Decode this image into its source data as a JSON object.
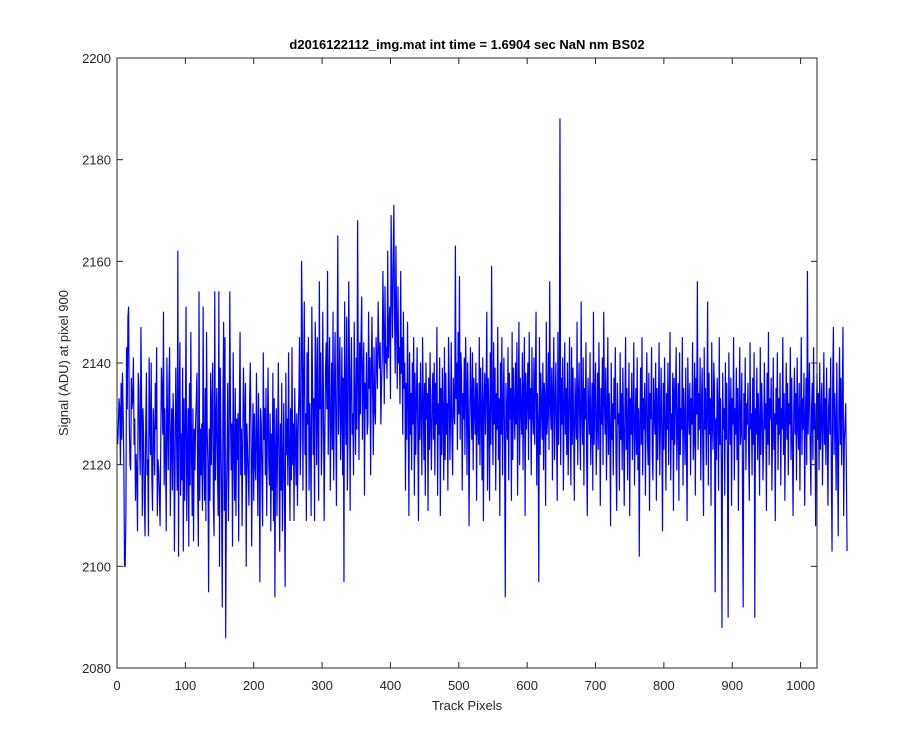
{
  "chart_data": {
    "type": "line",
    "title": "d2016122112_img.mat int time = 1.6904 sec  NaN nm BS02",
    "xlabel": "Track Pixels",
    "ylabel": "Signal (ADU) at pixel 900",
    "xlim": [
      0,
      1024
    ],
    "ylim": [
      2080,
      2200
    ],
    "xticks": [
      0,
      100,
      200,
      300,
      400,
      500,
      600,
      700,
      800,
      900,
      1000
    ],
    "yticks": [
      2080,
      2100,
      2120,
      2140,
      2160,
      2180,
      2200
    ],
    "grid": false,
    "legend": "none",
    "color": "#0000ff",
    "series": [
      {
        "x_start": 1,
        "x_step": 1,
        "values": [
          2124,
          2128,
          2133,
          2131,
          2120,
          2136,
          2125,
          2138,
          2130,
          2121,
          2100,
          2100,
          2110,
          2143,
          2131,
          2149,
          2151,
          2128,
          2120,
          2119,
          2137,
          2131,
          2133,
          2141,
          2124,
          2129,
          2113,
          2122,
          2118,
          2107,
          2138,
          2135,
          2124,
          2118,
          2147,
          2133,
          2110,
          2131,
          2125,
          2113,
          2106,
          2127,
          2138,
          2118,
          2121,
          2106,
          2141,
          2129,
          2122,
          2140,
          2117,
          2111,
          2131,
          2126,
          2118,
          2136,
          2127,
          2143,
          2110,
          2121,
          2119,
          2114,
          2108,
          2124,
          2139,
          2134,
          2126,
          2150,
          2116,
          2131,
          2122,
          2107,
          2141,
          2128,
          2119,
          2136,
          2143,
          2110,
          2124,
          2131,
          2115,
          2134,
          2128,
          2103,
          2121,
          2139,
          2127,
          2115,
          2162,
          2102,
          2131,
          2144,
          2114,
          2126,
          2117,
          2139,
          2103,
          2133,
          2113,
          2128,
          2151,
          2109,
          2122,
          2131,
          2104,
          2136,
          2116,
          2146,
          2122,
          2110,
          2131,
          2105,
          2127,
          2119,
          2128,
          2133,
          2138,
          2115,
          2104,
          2154,
          2113,
          2127,
          2118,
          2128,
          2111,
          2151,
          2121,
          2113,
          2135,
          2109,
          2146,
          2126,
          2120,
          2095,
          2127,
          2113,
          2138,
          2120,
          2132,
          2140,
          2112,
          2106,
          2154,
          2117,
          2128,
          2135,
          2118,
          2110,
          2154,
          2100,
          2139,
          2126,
          2113,
          2092,
          2133,
          2148,
          2111,
          2145,
          2086,
          2113,
          2122,
          2136,
          2109,
          2124,
          2154,
          2130,
          2119,
          2128,
          2104,
          2142,
          2123,
          2113,
          2135,
          2110,
          2129,
          2121,
          2130,
          2105,
          2131,
          2146,
          2118,
          2127,
          2108,
          2124,
          2139,
          2131,
          2118,
          2136,
          2100,
          2128,
          2123,
          2118,
          2112,
          2133,
          2140,
          2127,
          2104,
          2122,
          2132,
          2113,
          2130,
          2120,
          2117,
          2138,
          2125,
          2110,
          2134,
          2122,
          2097,
          2131,
          2128,
          2117,
          2108,
          2142,
          2125,
          2131,
          2118,
          2135,
          2110,
          2126,
          2139,
          2121,
          2116,
          2130,
          2107,
          2126,
          2115,
          2138,
          2109,
          2133,
          2094,
          2123,
          2131,
          2110,
          2125,
          2140,
          2120,
          2103,
          2128,
          2115,
          2136,
          2107,
          2119,
          2132,
          2113,
          2096,
          2138,
          2122,
          2129,
          2116,
          2142,
          2123,
          2109,
          2131,
          2117,
          2143,
          2120,
          2128,
          2109,
          2135,
          2124,
          2116,
          2130,
          2112,
          2127,
          2133,
          2145,
          2118,
          2125,
          2160,
          2148,
          2115,
          2138,
          2152,
          2122,
          2130,
          2109,
          2142,
          2128,
          2145,
          2115,
          2132,
          2124,
          2110,
          2151,
          2136,
          2122,
          2133,
          2109,
          2148,
          2138,
          2120,
          2145,
          2127,
          2113,
          2156,
          2131,
          2142,
          2118,
          2126,
          2150,
          2133,
          2109,
          2125,
          2138,
          2144,
          2131,
          2158,
          2122,
          2136,
          2145,
          2115,
          2128,
          2140,
          2123,
          2150,
          2117,
          2134,
          2146,
          2129,
          2112,
          2140,
          2165,
          2126,
          2134,
          2145,
          2121,
          2130,
          2143,
          2118,
          2137,
          2097,
          2152,
          2133,
          2124,
          2149,
          2115,
          2128,
          2156,
          2140,
          2111,
          2137,
          2145,
          2126,
          2130,
          2118,
          2148,
          2134,
          2122,
          2141,
          2127,
          2168,
          2136,
          2121,
          2144,
          2130,
          2145,
          2153,
          2125,
          2138,
          2144,
          2114,
          2136,
          2131,
          2142,
          2126,
          2128,
          2150,
          2135,
          2141,
          2118,
          2139,
          2149,
          2134,
          2122,
          2143,
          2131,
          2128,
          2145,
          2140,
          2135,
          2152,
          2143,
          2139,
          2144,
          2128,
          2136,
          2141,
          2158,
          2146,
          2132,
          2155,
          2140,
          2143,
          2137,
          2162,
          2141,
          2147,
          2151,
          2133,
          2169,
          2155,
          2145,
          2160,
          2171,
          2150,
          2138,
          2163,
          2148,
          2135,
          2155,
          2140,
          2143,
          2132,
          2158,
          2138,
          2145,
          2126,
          2150,
          2135,
          2140,
          2115,
          2136,
          2125,
          2148,
          2133,
          2110,
          2142,
          2126,
          2134,
          2119,
          2140,
          2128,
          2145,
          2114,
          2138,
          2122,
          2132,
          2143,
          2127,
          2109,
          2136,
          2125,
          2140,
          2130,
          2118,
          2145,
          2133,
          2121,
          2136,
          2114,
          2140,
          2129,
          2134,
          2111,
          2137,
          2123,
          2142,
          2127,
          2119,
          2133,
          2138,
          2125,
          2140,
          2118,
          2136,
          2128,
          2147,
          2114,
          2132,
          2126,
          2141,
          2110,
          2135,
          2122,
          2139,
          2129,
          2117,
          2143,
          2121,
          2138,
          2126,
          2132,
          2115,
          2145,
          2136,
          2121,
          2130,
          2144,
          2125,
          2118,
          2137,
          2131,
          2128,
          2163,
          2133,
          2140,
          2123,
          2146,
          2130,
          2157,
          2125,
          2142,
          2138,
          2115,
          2134,
          2129,
          2141,
          2122,
          2145,
          2136,
          2118,
          2140,
          2130,
          2108,
          2128,
          2143,
          2133,
          2125,
          2142,
          2119,
          2137,
          2131,
          2126,
          2140,
          2113,
          2136,
          2128,
          2124,
          2145,
          2120,
          2139,
          2131,
          2117,
          2141,
          2109,
          2132,
          2138,
          2126,
          2135,
          2150,
          2115,
          2137,
          2130,
          2113,
          2142,
          2124,
          2159,
          2131,
          2120,
          2144,
          2128,
          2139,
          2115,
          2134,
          2127,
          2147,
          2121,
          2133,
          2110,
          2140,
          2126,
          2145,
          2118,
          2132,
          2141,
          2123,
          2094,
          2136,
          2130,
          2125,
          2143,
          2117,
          2138,
          2129,
          2135,
          2113,
          2146,
          2121,
          2139,
          2131,
          2125,
          2140,
          2128,
          2144,
          2114,
          2133,
          2148,
          2120,
          2137,
          2131,
          2126,
          2142,
          2119,
          2135,
          2145,
          2110,
          2138,
          2127,
          2133,
          2140,
          2121,
          2146,
          2129,
          2135,
          2118,
          2143,
          2130,
          2126,
          2141,
          2124,
          2137,
          2150,
          2116,
          2134,
          2128,
          2097,
          2145,
          2122,
          2138,
          2131,
          2125,
          2140,
          2119,
          2136,
          2133,
          2112,
          2148,
          2126,
          2130,
          2142,
          2123,
          2156,
          2132,
          2127,
          2139,
          2117,
          2135,
          2145,
          2121,
          2131,
          2140,
          2127,
          2113,
          2146,
          2124,
          2132,
          2188,
          2120,
          2137,
          2128,
          2141,
          2115,
          2131,
          2144,
          2126,
          2135,
          2122,
          2140,
          2118,
          2129,
          2145,
          2130,
          2116,
          2143,
          2124,
          2139,
          2128,
          2113,
          2137,
          2131,
          2125,
          2148,
          2120,
          2133,
          2140,
          2127,
          2119,
          2152,
          2130,
          2124,
          2141,
          2116,
          2135,
          2129,
          2144,
          2122,
          2110,
          2137,
          2131,
          2126,
          2142,
          2120,
          2128,
          2136,
          2115,
          2150,
          2124,
          2133,
          2140,
          2118,
          2127,
          2138,
          2123,
          2144,
          2131,
          2112,
          2135,
          2128,
          2141,
          2120,
          2150,
          2133,
          2126,
          2139,
          2117,
          2130,
          2145,
          2122,
          2134,
          2127,
          2108,
          2140,
          2125,
          2132,
          2118,
          2137,
          2129,
          2143,
          2121,
          2111,
          2136,
          2128,
          2130,
          2115,
          2142,
          2125,
          2134,
          2119,
          2139,
          2127,
          2112,
          2131,
          2145,
          2123,
          2135,
          2117,
          2129,
          2140,
          2110,
          2133,
          2126,
          2138,
          2121,
          2130,
          2144,
          2116,
          2127,
          2135,
          2122,
          2141,
          2119,
          2131,
          2102,
          2128,
          2139,
          2124,
          2145,
          2118,
          2133,
          2127,
          2136,
          2114,
          2131,
          2142,
          2125,
          2120,
          2138,
          2111,
          2134,
          2129,
          2143,
          2122,
          2117,
          2137,
          2130,
          2126,
          2140,
          2113,
          2135,
          2121,
          2131,
          2144,
          2118,
          2128,
          2139,
          2125,
          2107,
          2136,
          2123,
          2141,
          2129,
          2115,
          2134,
          2127,
          2140,
          2120,
          2132,
          2146,
          2117,
          2130,
          2125,
          2138,
          2111,
          2137,
          2124,
          2134,
          2143,
          2119,
          2128,
          2136,
          2113,
          2142,
          2122,
          2131,
          2127,
          2145,
          2116,
          2135,
          2129,
          2120,
          2139,
          2124,
          2109,
          2141,
          2131,
          2126,
          2136,
          2118,
          2133,
          2128,
          2144,
          2121,
          2125,
          2140,
          2114,
          2137,
          2130,
          2156,
          2123,
          2134,
          2127,
          2141,
          2117,
          2132,
          2139,
          2122,
          2110,
          2143,
          2127,
          2135,
          2120,
          2131,
          2152,
          2116,
          2138,
          2126,
          2133,
          2112,
          2144,
          2128,
          2123,
          2140,
          2135,
          2095,
          2129,
          2121,
          2137,
          2131,
          2115,
          2145,
          2124,
          2133,
          2120,
          2088,
          2138,
          2127,
          2131,
          2114,
          2140,
          2125,
          2136,
          2119,
          2090,
          2142,
          2130,
          2124,
          2137,
          2112,
          2133,
          2128,
          2145,
          2117,
          2131,
          2126,
          2139,
          2121,
          2135,
          2111,
          2130,
          2143,
          2124,
          2127,
          2138,
          2116,
          2092,
          2134,
          2125,
          2141,
          2119,
          2132,
          2128,
          2136,
          2122,
          2113,
          2144,
          2127,
          2130,
          2118,
          2137,
          2124,
          2142,
          2090,
          2131,
          2126,
          2139,
          2121,
          2134,
          2128,
          2114,
          2143,
          2122,
          2136,
          2130,
          2117,
          2125,
          2140,
          2127,
          2132,
          2111,
          2138,
          2124,
          2146,
          2120,
          2133,
          2129,
          2137,
          2115,
          2126,
          2141,
          2123,
          2130,
          2109,
          2135,
          2128,
          2142,
          2119,
          2133,
          2126,
          2138,
          2116,
          2131,
          2127,
          2145,
          2122,
          2134,
          2113,
          2129,
          2140,
          2125,
          2136,
          2118,
          2132,
          2128,
          2143,
          2121,
          2137,
          2124,
          2110,
          2131,
          2139,
          2126,
          2134,
          2117,
          2141,
          2128,
          2123,
          2136,
          2115,
          2130,
          2145,
          2122,
          2133,
          2127,
          2138,
          2112,
          2129,
          2137,
          2120,
          2158,
          2126,
          2133,
          2140,
          2124,
          2114,
          2131,
          2136,
          2121,
          2143,
          2127,
          2132,
          2108,
          2129,
          2138,
          2125,
          2134,
          2119,
          2140,
          2123,
          2130,
          2136,
          2116,
          2128,
          2142,
          2124,
          2133,
          2120,
          2139,
          2127,
          2112,
          2131,
          2135,
          2126,
          2141,
          2118,
          2103,
          2137,
          2147,
          2122,
          2134,
          2128,
          2115,
          2140,
          2123,
          2106,
          2131,
          2143,
          2124,
          2137,
          2120,
          2133,
          2147,
          2110,
          2125,
          2128,
          2132,
          2118,
          2103
        ]
      }
    ]
  }
}
